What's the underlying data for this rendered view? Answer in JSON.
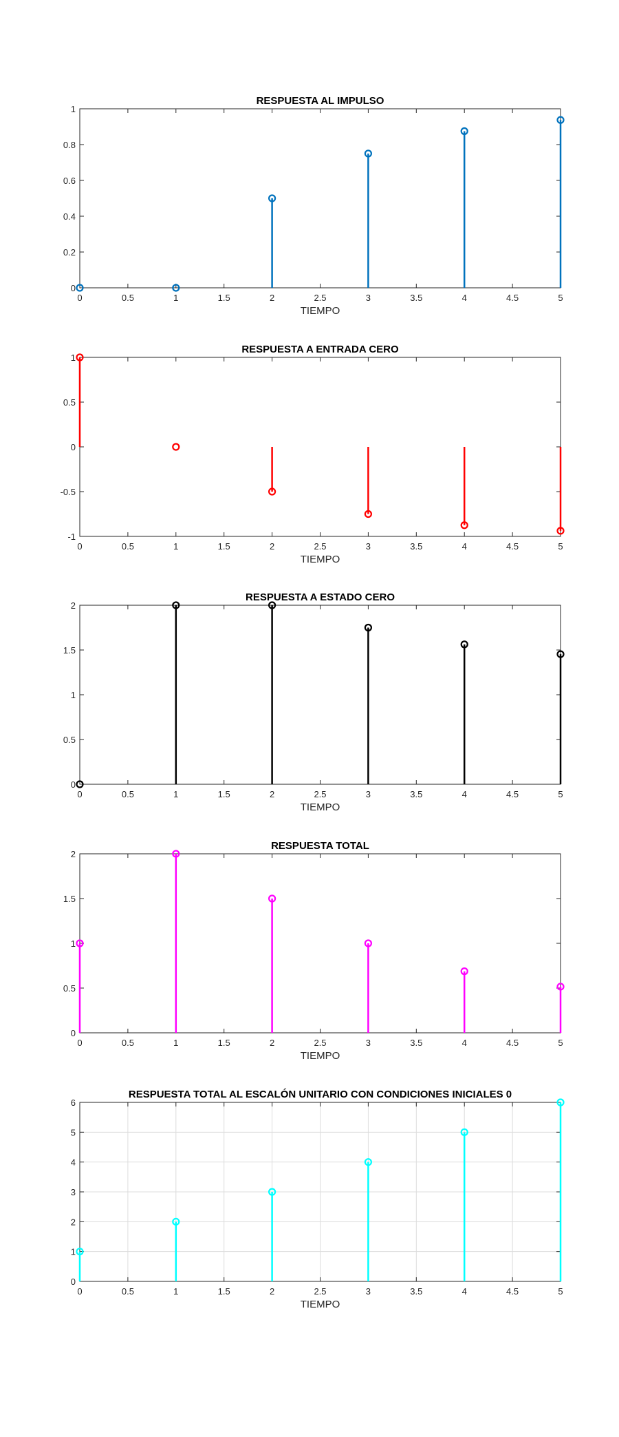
{
  "chart_data": [
    {
      "type": "stem",
      "title": "RESPUESTA AL IMPULSO",
      "xlabel": "TIEMPO",
      "ylabel": "",
      "x": [
        0,
        1,
        2,
        3,
        4,
        5
      ],
      "y": [
        0,
        0,
        0.5,
        0.75,
        0.875,
        0.9375
      ],
      "xlim": [
        0,
        5
      ],
      "ylim": [
        0,
        1
      ],
      "xticks": [
        "0",
        "0.5",
        "1",
        "1.5",
        "2",
        "2.5",
        "3",
        "3.5",
        "4",
        "4.5",
        "5"
      ],
      "yticks": [
        "0",
        "0.2",
        "0.4",
        "0.6",
        "0.8",
        "1"
      ],
      "grid": false,
      "color": "#0072bd"
    },
    {
      "type": "stem",
      "title": "RESPUESTA A ENTRADA CERO",
      "xlabel": "TIEMPO",
      "ylabel": "",
      "x": [
        0,
        1,
        2,
        3,
        4,
        5
      ],
      "y": [
        1,
        0,
        -0.5,
        -0.75,
        -0.875,
        -0.9375
      ],
      "xlim": [
        0,
        5
      ],
      "ylim": [
        -1,
        1
      ],
      "xticks": [
        "0",
        "0.5",
        "1",
        "1.5",
        "2",
        "2.5",
        "3",
        "3.5",
        "4",
        "4.5",
        "5"
      ],
      "yticks": [
        "-1",
        "-0.5",
        "0",
        "0.5",
        "1"
      ],
      "grid": false,
      "color": "#ff0000"
    },
    {
      "type": "stem",
      "title": "RESPUESTA A ESTADO CERO",
      "xlabel": "TIEMPO",
      "ylabel": "",
      "x": [
        0,
        1,
        2,
        3,
        4,
        5
      ],
      "y": [
        0,
        2,
        2,
        1.75,
        1.5625,
        1.4531
      ],
      "xlim": [
        0,
        5
      ],
      "ylim": [
        0,
        2
      ],
      "xticks": [
        "0",
        "0.5",
        "1",
        "1.5",
        "2",
        "2.5",
        "3",
        "3.5",
        "4",
        "4.5",
        "5"
      ],
      "yticks": [
        "0",
        "0.5",
        "1",
        "1.5",
        "2"
      ],
      "grid": false,
      "color": "#000000"
    },
    {
      "type": "stem",
      "title": "RESPUESTA TOTAL",
      "xlabel": "TIEMPO",
      "ylabel": "",
      "x": [
        0,
        1,
        2,
        3,
        4,
        5
      ],
      "y": [
        1,
        2,
        1.5,
        1,
        0.6875,
        0.5156
      ],
      "xlim": [
        0,
        5
      ],
      "ylim": [
        0,
        2
      ],
      "xticks": [
        "0",
        "0.5",
        "1",
        "1.5",
        "2",
        "2.5",
        "3",
        "3.5",
        "4",
        "4.5",
        "5"
      ],
      "yticks": [
        "0",
        "0.5",
        "1",
        "1.5",
        "2"
      ],
      "grid": false,
      "color": "#ff00ff"
    },
    {
      "type": "stem",
      "title": "RESPUESTA TOTAL AL ESCALÓN UNITARIO CON CONDICIONES INICIALES 0",
      "xlabel": "TIEMPO",
      "ylabel": "",
      "x": [
        0,
        1,
        2,
        3,
        4,
        5
      ],
      "y": [
        1,
        2,
        3,
        4,
        5,
        6
      ],
      "xlim": [
        0,
        5
      ],
      "ylim": [
        0,
        6
      ],
      "xticks": [
        "0",
        "0.5",
        "1",
        "1.5",
        "2",
        "2.5",
        "3",
        "3.5",
        "4",
        "4.5",
        "5"
      ],
      "yticks": [
        "0",
        "1",
        "2",
        "3",
        "4",
        "5",
        "6"
      ],
      "grid": true,
      "color": "#00ffff"
    }
  ]
}
